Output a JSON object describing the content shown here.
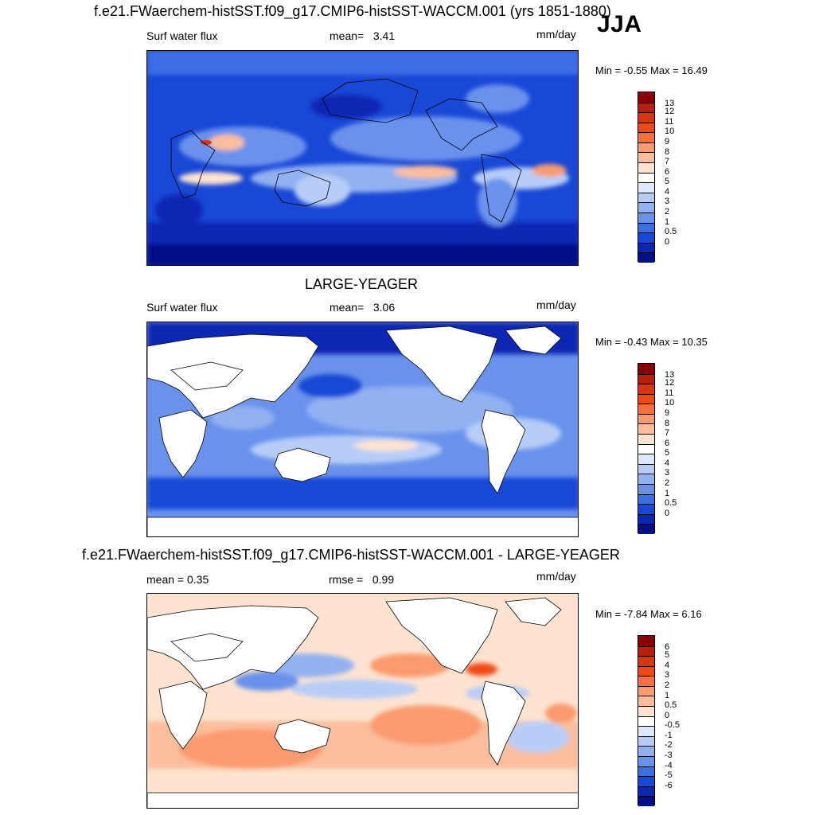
{
  "figure": {
    "season": "JJA",
    "units": "mm/day",
    "variable": "Surf water flux"
  },
  "panels": [
    {
      "id": "model",
      "title": "f.e21.FWaerchem-histSST.f09_g17.CMIP6-histSST-WACCM.001 (yrs 1851-1880)",
      "left_label": "Surf water flux",
      "stat_label": "mean=",
      "stat_value": "3.41",
      "units": "mm/day",
      "minmax": "Min =  -0.55 Max =  16.49"
    },
    {
      "id": "obs",
      "title": "LARGE-YEAGER",
      "left_label": "Surf water flux",
      "stat_label": "mean=",
      "stat_value": "3.06",
      "units": "mm/day",
      "minmax": "Min =  -0.43 Max =  10.35"
    },
    {
      "id": "diff",
      "title": "f.e21.FWaerchem-histSST.f09_g17.CMIP6-histSST-WACCM.001 - LARGE-YEAGER",
      "left_label": "mean =   0.35",
      "stat_label": "rmse =",
      "stat_value": "0.99",
      "units": "mm/day",
      "minmax": "Min =  -7.84 Max =   6.16"
    }
  ],
  "colorbars": {
    "abs": {
      "labels": [
        "13",
        "12",
        "11",
        "10",
        "9",
        "8",
        "7",
        "6",
        "5",
        "4",
        "3",
        "2",
        "1",
        "0.5",
        "0"
      ],
      "colors": [
        "#8b0000",
        "#b8200c",
        "#d9350f",
        "#f04a16",
        "#fc6e3a",
        "#fb9a6e",
        "#fbbd9b",
        "#fde3d0",
        "#ffffff",
        "#dde9ff",
        "#b7cdf7",
        "#92b1f1",
        "#6a92ec",
        "#3d6ee6",
        "#1948d6",
        "#0a28b4",
        "#040e86"
      ]
    },
    "diff": {
      "labels": [
        "6",
        "5",
        "4",
        "3",
        "2",
        "1",
        "0.5",
        "0",
        "-0.5",
        "-1",
        "-2",
        "-3",
        "-4",
        "-5",
        "-6"
      ],
      "colors": [
        "#8b0000",
        "#b8200c",
        "#d9350f",
        "#f04a16",
        "#fc6e3a",
        "#fb9a6e",
        "#fbbd9b",
        "#fde3d0",
        "#ffffff",
        "#dde9ff",
        "#b7cdf7",
        "#92b1f1",
        "#6a92ec",
        "#3d6ee6",
        "#1948d6",
        "#0a28b4",
        "#040e86"
      ]
    }
  },
  "chart_data": [
    {
      "type": "heatmap",
      "title": "f.e21.FWaerchem-histSST.f09_g17.CMIP6-histSST-WACCM.001 (yrs 1851-1880)",
      "variable": "Surf water flux",
      "units": "mm/day",
      "season": "JJA",
      "mean": 3.41,
      "min": -0.55,
      "max": 16.49,
      "levels": [
        0,
        0.5,
        1,
        2,
        3,
        4,
        5,
        6,
        7,
        8,
        9,
        10,
        11,
        12,
        13
      ],
      "domain": "global lat-lon map"
    },
    {
      "type": "heatmap",
      "title": "LARGE-YEAGER",
      "variable": "Surf water flux",
      "units": "mm/day",
      "season": "JJA",
      "mean": 3.06,
      "min": -0.43,
      "max": 10.35,
      "levels": [
        0,
        0.5,
        1,
        2,
        3,
        4,
        5,
        6,
        7,
        8,
        9,
        10,
        11,
        12,
        13
      ],
      "domain": "global ocean lat-lon map (land masked)"
    },
    {
      "type": "heatmap",
      "title": "f.e21.FWaerchem-histSST.f09_g17.CMIP6-histSST-WACCM.001 - LARGE-YEAGER",
      "variable": "Surf water flux difference",
      "units": "mm/day",
      "season": "JJA",
      "mean": 0.35,
      "rmse": 0.99,
      "min": -7.84,
      "max": 6.16,
      "levels": [
        -6,
        -5,
        -4,
        -3,
        -2,
        -1,
        -0.5,
        0,
        0.5,
        1,
        2,
        3,
        4,
        5,
        6
      ],
      "domain": "global ocean lat-lon map (land masked)"
    }
  ]
}
